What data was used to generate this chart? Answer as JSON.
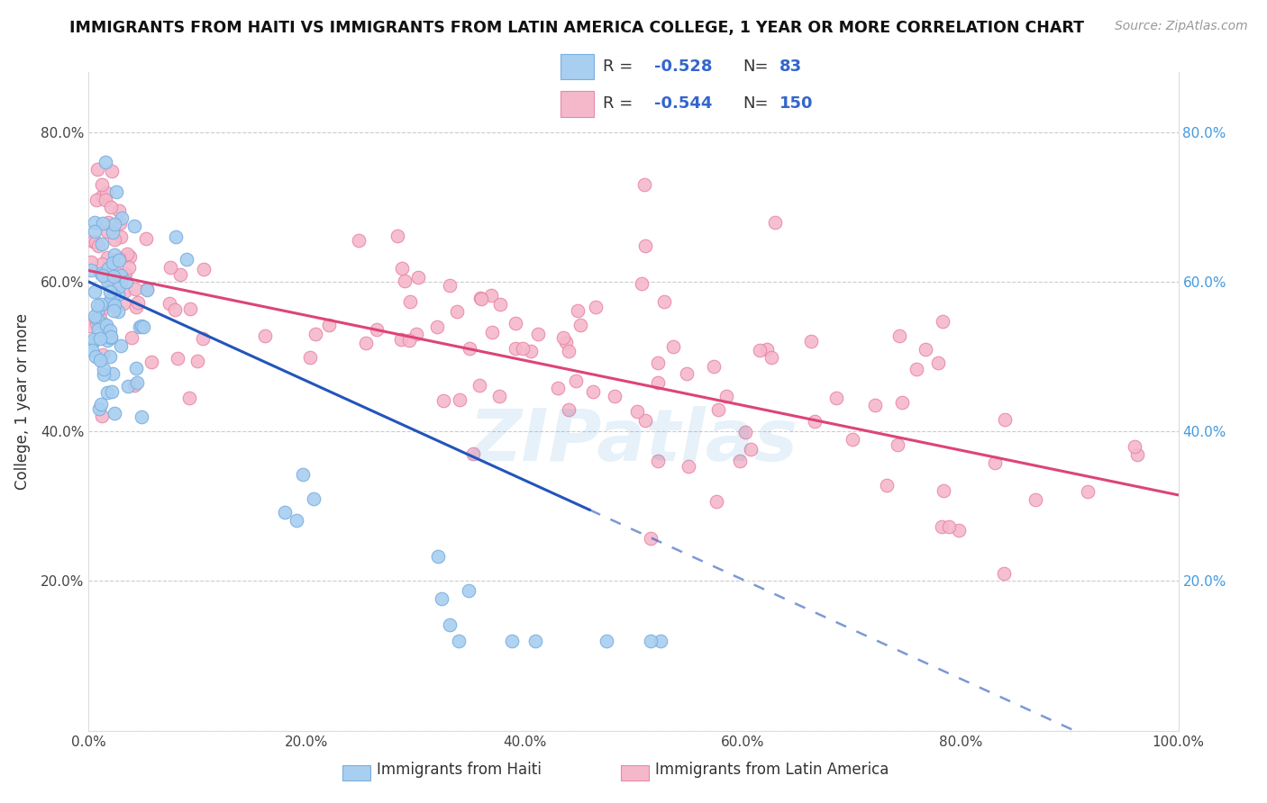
{
  "title": "IMMIGRANTS FROM HAITI VS IMMIGRANTS FROM LATIN AMERICA COLLEGE, 1 YEAR OR MORE CORRELATION CHART",
  "source": "Source: ZipAtlas.com",
  "ylabel": "College, 1 year or more",
  "xlim": [
    0,
    1.0
  ],
  "ylim": [
    0,
    0.88
  ],
  "xticks": [
    0.0,
    0.2,
    0.4,
    0.6,
    0.8,
    1.0
  ],
  "yticks": [
    0.0,
    0.2,
    0.4,
    0.6,
    0.8
  ],
  "haiti_R": -0.528,
  "haiti_N": 83,
  "latam_R": -0.544,
  "latam_N": 150,
  "haiti_color": "#A8CFF0",
  "haiti_edge": "#7AAEE0",
  "latam_color": "#F5B8CB",
  "latam_edge": "#E888A8",
  "haiti_line_color": "#2255BB",
  "latam_line_color": "#DD4477",
  "watermark": "ZIPatlas",
  "haiti_line_x0": 0.0,
  "haiti_line_y0": 0.6,
  "haiti_line_x1": 0.46,
  "haiti_line_y1": 0.295,
  "latam_line_x0": 0.0,
  "latam_line_y0": 0.615,
  "latam_line_x1": 1.0,
  "latam_line_y1": 0.315
}
